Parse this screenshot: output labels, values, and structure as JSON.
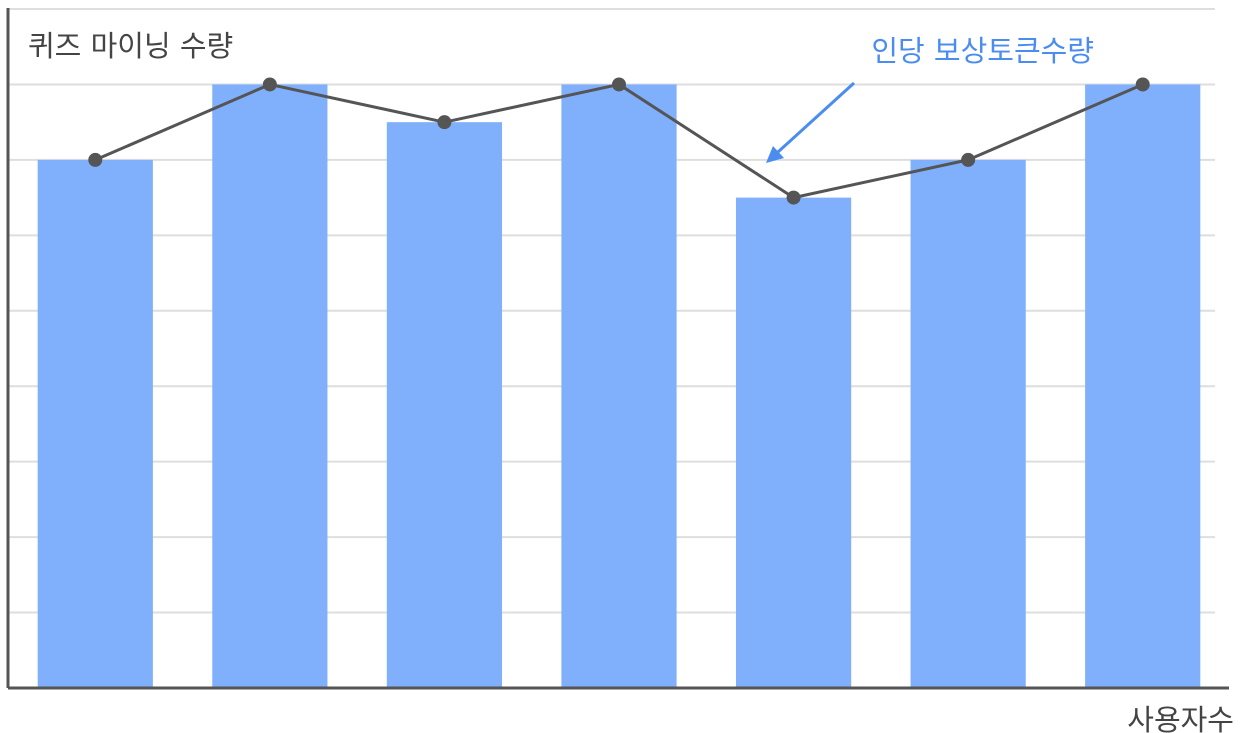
{
  "chart_data": {
    "type": "bar",
    "ylabel": "퀴즈 마이닝 수량",
    "xlabel": "사용자수",
    "ylim": [
      0,
      9
    ],
    "grid": true,
    "categories": [
      "",
      "",
      "",
      "",
      "",
      "",
      ""
    ],
    "series": [
      {
        "type": "bar",
        "values": [
          7,
          8,
          7.5,
          8,
          6.5,
          7,
          8
        ],
        "color": "#80b0fc"
      },
      {
        "type": "line",
        "values": [
          7,
          8,
          7.5,
          8,
          6.5,
          7,
          8
        ],
        "color": "#555555"
      }
    ],
    "annotation": {
      "text": "인당 보상토큰수량",
      "points_to": "line",
      "color": "#4a8cf0"
    }
  }
}
